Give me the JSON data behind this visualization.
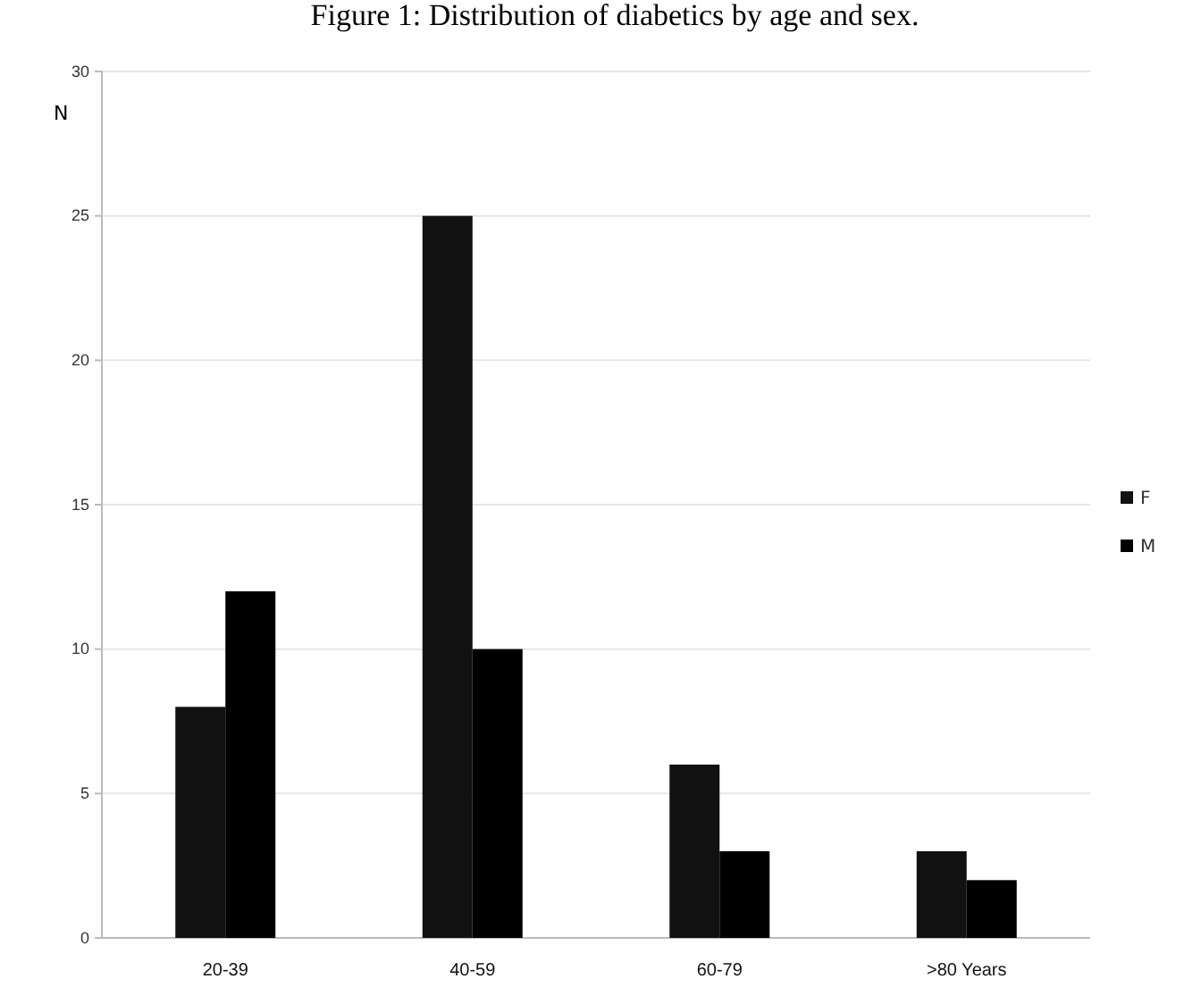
{
  "chart_data": {
    "type": "bar",
    "title": "Figure 1: Distribution of diabetics by age and sex.",
    "ylabel": "N",
    "categories": [
      "20-39",
      "40-59",
      "60-79",
      ">80 Years"
    ],
    "series": [
      {
        "name": "F",
        "color": "#111111",
        "values": [
          8,
          25,
          6,
          3
        ]
      },
      {
        "name": "M",
        "color": "#000000",
        "values": [
          12,
          10,
          3,
          2
        ]
      }
    ],
    "ylim": [
      0,
      30
    ],
    "yticks": [
      0,
      5,
      10,
      15,
      20,
      25,
      30
    ],
    "grid": "y",
    "legend": "right"
  }
}
